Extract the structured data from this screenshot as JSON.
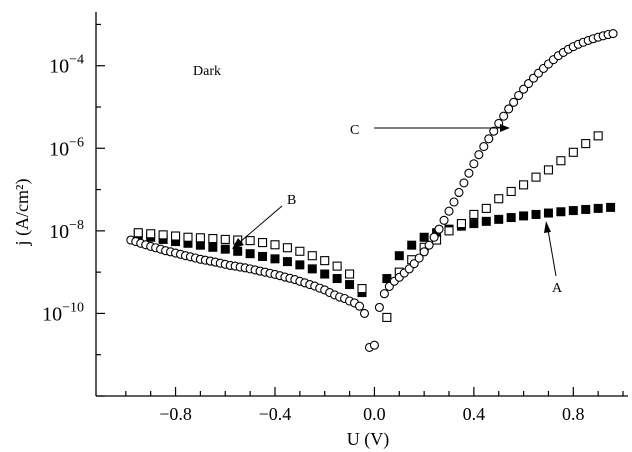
{
  "chart_data": {
    "type": "scatter",
    "title": "",
    "xlabel": "U (V)",
    "ylabel": "j (A/cm²)",
    "annotation": "Dark",
    "xlim": [
      -1.12,
      1.02
    ],
    "ylim": [
      1e-12,
      0.002
    ],
    "yscale": "log",
    "x_ticks": [
      -0.8,
      -0.4,
      0.0,
      0.4,
      0.8
    ],
    "x_tick_labels": [
      "−0.8",
      "−0.4",
      "0.0",
      "0.4",
      "0.8"
    ],
    "y_ticks": [
      1e-10,
      1e-08,
      1e-06,
      0.0001
    ],
    "y_tick_labels": [
      {
        "base": "10",
        "exp": "−10"
      },
      {
        "base": "10",
        "exp": "−8"
      },
      {
        "base": "10",
        "exp": "−6"
      },
      {
        "base": "10",
        "exp": "−4"
      }
    ],
    "grid": false,
    "series": [
      {
        "name": "A",
        "marker": "filled-square",
        "x": [
          -0.95,
          -0.9,
          -0.85,
          -0.8,
          -0.75,
          -0.7,
          -0.65,
          -0.6,
          -0.55,
          -0.5,
          -0.45,
          -0.4,
          -0.35,
          -0.3,
          -0.25,
          -0.2,
          -0.15,
          -0.1,
          -0.05,
          0.05,
          0.1,
          0.15,
          0.2,
          0.25,
          0.3,
          0.35,
          0.4,
          0.45,
          0.5,
          0.55,
          0.6,
          0.65,
          0.7,
          0.75,
          0.8,
          0.85,
          0.9,
          0.95
        ],
        "y": [
          8e-09,
          7e-09,
          6.2e-09,
          5.5e-09,
          5e-09,
          4.5e-09,
          4e-09,
          3.6e-09,
          3.2e-09,
          2.8e-09,
          2.4e-09,
          2.1e-09,
          1.8e-09,
          1.5e-09,
          1.2e-09,
          9e-10,
          7e-10,
          5e-10,
          3.2e-10,
          7e-10,
          2.5e-09,
          4.5e-09,
          7e-09,
          9e-09,
          1.1e-08,
          1.3e-08,
          1.5e-08,
          1.7e-08,
          1.9e-08,
          2.1e-08,
          2.3e-08,
          2.5e-08,
          2.7e-08,
          2.9e-08,
          3.1e-08,
          3.3e-08,
          3.5e-08,
          3.7e-08
        ]
      },
      {
        "name": "B",
        "marker": "open-square",
        "x": [
          -0.95,
          -0.9,
          -0.85,
          -0.8,
          -0.75,
          -0.7,
          -0.65,
          -0.6,
          -0.55,
          -0.5,
          -0.45,
          -0.4,
          -0.35,
          -0.3,
          -0.25,
          -0.2,
          -0.15,
          -0.1,
          -0.05,
          0.05,
          0.1,
          0.15,
          0.2,
          0.25,
          0.3,
          0.35,
          0.4,
          0.45,
          0.5,
          0.55,
          0.6,
          0.65,
          0.7,
          0.75,
          0.8,
          0.85,
          0.9
        ],
        "y": [
          9e-09,
          8.5e-09,
          8e-09,
          7.5e-09,
          7e-09,
          6.8e-09,
          6.5e-09,
          6.2e-09,
          6e-09,
          5.8e-09,
          5.2e-09,
          4.6e-09,
          3.9e-09,
          3.2e-09,
          2.5e-09,
          1.9e-09,
          1.4e-09,
          9e-10,
          4e-10,
          8e-11,
          1e-09,
          2e-09,
          4e-09,
          6e-09,
          1e-08,
          1.5e-08,
          2.5e-08,
          3.5e-08,
          6e-08,
          9e-08,
          1.3e-07,
          2e-07,
          3e-07,
          5e-07,
          8e-07,
          1.3e-06,
          2e-06
        ]
      },
      {
        "name": "C",
        "marker": "open-circle",
        "x": [
          -0.98,
          -0.96,
          -0.94,
          -0.92,
          -0.9,
          -0.88,
          -0.86,
          -0.84,
          -0.82,
          -0.8,
          -0.78,
          -0.76,
          -0.74,
          -0.72,
          -0.7,
          -0.68,
          -0.66,
          -0.64,
          -0.62,
          -0.6,
          -0.58,
          -0.56,
          -0.54,
          -0.52,
          -0.5,
          -0.48,
          -0.46,
          -0.44,
          -0.42,
          -0.4,
          -0.38,
          -0.36,
          -0.34,
          -0.32,
          -0.3,
          -0.28,
          -0.26,
          -0.24,
          -0.22,
          -0.2,
          -0.18,
          -0.16,
          -0.14,
          -0.12,
          -0.1,
          -0.08,
          -0.06,
          -0.04,
          -0.02,
          0.0,
          0.02,
          0.04,
          0.06,
          0.08,
          0.1,
          0.12,
          0.14,
          0.16,
          0.18,
          0.2,
          0.22,
          0.24,
          0.26,
          0.28,
          0.3,
          0.32,
          0.34,
          0.36,
          0.38,
          0.4,
          0.42,
          0.44,
          0.46,
          0.48,
          0.5,
          0.52,
          0.54,
          0.56,
          0.58,
          0.6,
          0.62,
          0.64,
          0.66,
          0.68,
          0.7,
          0.72,
          0.74,
          0.76,
          0.78,
          0.8,
          0.82,
          0.84,
          0.86,
          0.88,
          0.9,
          0.92,
          0.94,
          0.96
        ],
        "y": [
          6e-09,
          5.5e-09,
          5e-09,
          4.6e-09,
          4.2e-09,
          3.9e-09,
          3.6e-09,
          3.3e-09,
          3.1e-09,
          2.9e-09,
          2.7e-09,
          2.5e-09,
          2.35e-09,
          2.2e-09,
          2.05e-09,
          1.95e-09,
          1.85e-09,
          1.75e-09,
          1.65e-09,
          1.55e-09,
          1.45e-09,
          1.4e-09,
          1.33e-09,
          1.27e-09,
          1.2e-09,
          1.13e-09,
          1.06e-09,
          1e-09,
          9.4e-10,
          8.8e-10,
          8.2e-10,
          7.6e-10,
          7.1e-10,
          6.6e-10,
          6e-10,
          5.5e-10,
          5e-10,
          4.6e-10,
          4.1e-10,
          3.7e-10,
          3.2e-10,
          2.8e-10,
          2.5e-10,
          2.3e-10,
          2e-10,
          1.8e-10,
          1.5e-10,
          1e-10,
          1.5e-11,
          1.7e-11,
          1.4e-10,
          3e-10,
          4.5e-10,
          6e-10,
          7.5e-10,
          9.5e-10,
          1.2e-09,
          1.6e-09,
          2.2e-09,
          3.1e-09,
          4.5e-09,
          7e-09,
          1.1e-08,
          1.8e-08,
          3e-08,
          5e-08,
          8.5e-08,
          1.45e-07,
          2.5e-07,
          4.2e-07,
          7e-07,
          1.1e-06,
          1.7e-06,
          2.6e-06,
          4e-06,
          6e-06,
          9e-06,
          1.3e-05,
          1.9e-05,
          2.7e-05,
          3.7e-05,
          5e-05,
          6.6e-05,
          8.6e-05,
          0.00011,
          0.00014,
          0.000175,
          0.00021,
          0.00025,
          0.00029,
          0.00033,
          0.00037,
          0.00041,
          0.00045,
          0.00049,
          0.00053,
          0.00057,
          0.0006
        ]
      }
    ],
    "series_labels": [
      {
        "text": "A",
        "arrow_to_series": "A"
      },
      {
        "text": "B",
        "arrow_to_series": "B"
      },
      {
        "text": "C",
        "arrow_to_series": "C"
      }
    ]
  }
}
